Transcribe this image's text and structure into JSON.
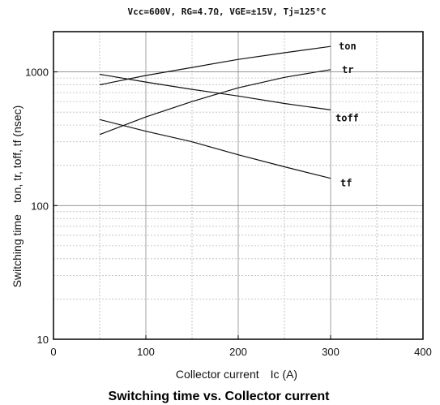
{
  "chart_data": {
    "type": "line",
    "title": "Vcc=600V, RG=4.7Ω, VGE=±15V, Tj=125°C",
    "caption": "Switching time vs. Collector current",
    "xlabel": "Collector current　Ic (A)",
    "ylabel": "Switching time　ton, tr, toff, tf (nsec)",
    "x_scale": "linear",
    "y_scale": "log",
    "xlim": [
      0,
      400
    ],
    "ylim": [
      10,
      2000
    ],
    "x_ticks": [
      0,
      100,
      200,
      300,
      400
    ],
    "y_ticks": [
      10,
      100,
      1000
    ],
    "grid": true,
    "series": [
      {
        "name": "ton",
        "x": [
          50,
          100,
          150,
          200,
          250,
          300
        ],
        "values": [
          800,
          940,
          1080,
          1240,
          1390,
          1550
        ]
      },
      {
        "name": "tr",
        "x": [
          50,
          100,
          150,
          200,
          250,
          300
        ],
        "values": [
          340,
          460,
          600,
          760,
          910,
          1040
        ]
      },
      {
        "name": "toff",
        "x": [
          50,
          100,
          150,
          200,
          250,
          300
        ],
        "values": [
          960,
          840,
          740,
          660,
          580,
          520
        ]
      },
      {
        "name": "tf",
        "x": [
          50,
          100,
          150,
          200,
          250,
          300
        ],
        "values": [
          440,
          360,
          300,
          240,
          195,
          160
        ]
      }
    ]
  }
}
